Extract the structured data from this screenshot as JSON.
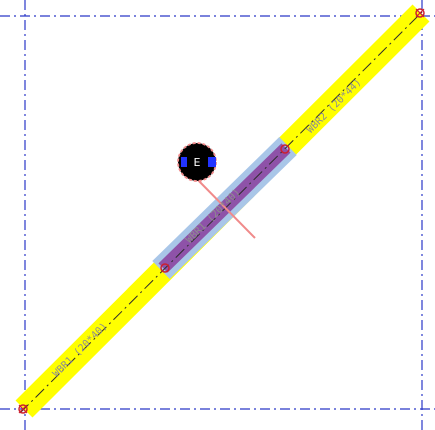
{
  "colors": {
    "grid_line": "#2a37c8",
    "beam": "#ffff00",
    "selected_beam_outer": "#a9c6e8",
    "selected_beam_inner": "#8e52a8",
    "centerline": "#2c2c2c",
    "node": "#cc2030",
    "leader": "#f08a8a",
    "badge_fill": "#000000",
    "badge_ring": "#f08a8a",
    "badge_accent": "#2233ff",
    "label": "#8e8e8e"
  },
  "segments": {
    "lower": {
      "label": "WBR1 (20*40)"
    },
    "middle": {
      "label": "WBR1 (20*40)"
    },
    "upper": {
      "label": "WBR2 (20*44)"
    }
  },
  "badge": {
    "text": "E",
    "icon": "section-marker-icon"
  }
}
